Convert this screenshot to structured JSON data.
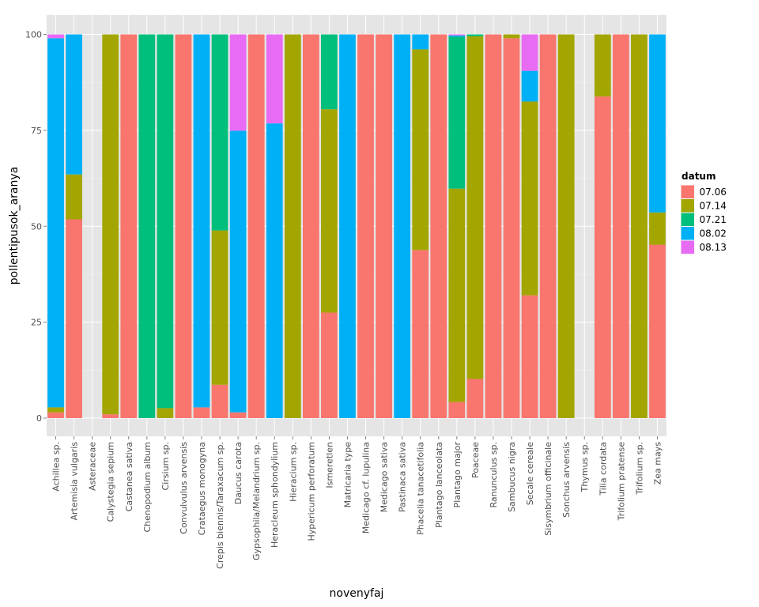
{
  "chart_data": {
    "type": "bar",
    "stacked": true,
    "xlabel": "novenyfaj",
    "ylabel": "pollentipusok_aranya",
    "ylim": [
      0,
      100
    ],
    "yticks": [
      0,
      25,
      50,
      75,
      100
    ],
    "grid": true,
    "legend": {
      "title": "datum",
      "position": "right"
    },
    "categories": [
      "Achillea sp.",
      "Artemisia vulgaris",
      "Asteraceae",
      "Calystegia sepium",
      "Castanea sativa",
      "Chenopodium album",
      "Cirsium sp.",
      "Convulvulus arvensis",
      "Crataegus monogyna",
      "Crepis biennis/Taraxacum sp.",
      "Daucus carota",
      "Gypsophila/Melandrium sp.",
      "Heracleum sphondylium",
      "Hieracium sp.",
      "Hypericum perforatum",
      "Ismeretlen",
      "Matricaria type",
      "Medicago cf. lupulina",
      "Medicago sativa",
      "Pastinaca sativa",
      "Phacelia tanacetifolia",
      "Plantago lanceolata",
      "Plantago major",
      "Poaceae",
      "Ranunculus sp.",
      "Sambucus nigra",
      "Secale cereale",
      "Sisymbrium officinale",
      "Sonchus arvensis",
      "Thymus sp.",
      "Tilia cordata",
      "Trifolium pratense",
      "Trifolium sp.",
      "Zea mays"
    ],
    "series": [
      {
        "name": "07.06",
        "color": "#F8766D",
        "values": [
          1.5,
          51.8,
          0,
          1,
          100,
          0,
          0,
          100,
          2.8,
          8.7,
          1.5,
          100,
          0,
          0,
          100,
          27.5,
          0,
          100,
          100,
          0,
          43.8,
          100,
          4.2,
          10.2,
          100,
          99,
          32,
          100,
          0,
          0,
          83.8,
          100,
          0,
          45.2
        ]
      },
      {
        "name": "07.14",
        "color": "#A3A500",
        "values": [
          1.3,
          11.7,
          0,
          99,
          0,
          0,
          2.6,
          0,
          0,
          40.2,
          0,
          0,
          0,
          100,
          0,
          53,
          0,
          0,
          0,
          0,
          52.3,
          0,
          55.6,
          89.3,
          0,
          1,
          50.5,
          0,
          100,
          0,
          16.2,
          0,
          100,
          8.4
        ]
      },
      {
        "name": "07.21",
        "color": "#00BF7D",
        "values": [
          0,
          0,
          0,
          0,
          0,
          100,
          97.4,
          0,
          0,
          51.1,
          0,
          0,
          0,
          0,
          0,
          19.5,
          0,
          0,
          0,
          0,
          0,
          0,
          39.6,
          0.5,
          0,
          0,
          0,
          0,
          0,
          0,
          0,
          0,
          0,
          0
        ]
      },
      {
        "name": "08.02",
        "color": "#00B0F6",
        "values": [
          96.2,
          36.5,
          0,
          0,
          0,
          0,
          0,
          0,
          97.2,
          0,
          73.4,
          0,
          76.8,
          0,
          0,
          0,
          100,
          0,
          0,
          100,
          3.9,
          0,
          0.3,
          0,
          0,
          0,
          8,
          0,
          0,
          0,
          0,
          0,
          0,
          46.4
        ]
      },
      {
        "name": "08.13",
        "color": "#E76BF3",
        "values": [
          1,
          0,
          0,
          0,
          0,
          0,
          0,
          0,
          0,
          0,
          25.1,
          0,
          23.2,
          0,
          0,
          0,
          0,
          0,
          0,
          0,
          0,
          0,
          0.3,
          0,
          0,
          0,
          9.5,
          0,
          0,
          0,
          0,
          0,
          0,
          0
        ]
      }
    ]
  }
}
